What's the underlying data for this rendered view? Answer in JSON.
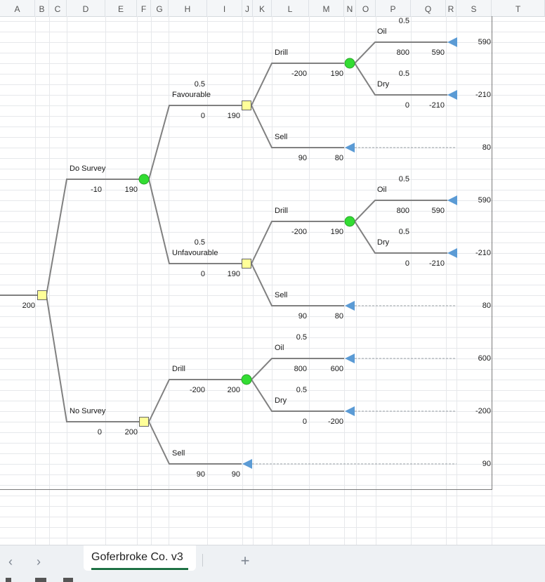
{
  "columns": [
    "A",
    "B",
    "C",
    "D",
    "E",
    "F",
    "G",
    "H",
    "I",
    "J",
    "K",
    "L",
    "M",
    "N",
    "O",
    "P",
    "Q",
    "R",
    "S",
    "T"
  ],
  "tree": {
    "root_value": "200",
    "do_survey": {
      "label": "Do Survey",
      "cost": "-10",
      "value": "190"
    },
    "no_survey": {
      "label": "No Survey",
      "cost": "0",
      "value": "200"
    },
    "favourable": {
      "prob": "0.5",
      "label": "Favourable",
      "cost": "0",
      "value": "190",
      "drill": {
        "label": "Drill",
        "cost": "-200",
        "value": "190",
        "oil": {
          "prob": "0.5",
          "label": "Oil",
          "cost": "800",
          "value": "590",
          "payoff": "590"
        },
        "dry": {
          "prob": "0.5",
          "label": "Dry",
          "cost": "0",
          "value": "-210",
          "payoff": "-210"
        }
      },
      "sell": {
        "label": "Sell",
        "cost": "90",
        "value": "80",
        "payoff": "80"
      }
    },
    "unfavourable": {
      "prob": "0.5",
      "label": "Unfavourable",
      "cost": "0",
      "value": "190",
      "drill": {
        "label": "Drill",
        "cost": "-200",
        "value": "190",
        "oil": {
          "prob": "0.5",
          "label": "Oil",
          "cost": "800",
          "value": "590",
          "payoff": "590"
        },
        "dry": {
          "prob": "0.5",
          "label": "Dry",
          "cost": "0",
          "value": "-210",
          "payoff": "-210"
        }
      },
      "sell": {
        "label": "Sell",
        "cost": "90",
        "value": "80",
        "payoff": "80"
      }
    },
    "nosurvey_drill": {
      "label": "Drill",
      "cost": "-200",
      "value": "200",
      "oil": {
        "prob": "0.5",
        "label": "Oil",
        "cost": "800",
        "value": "600",
        "payoff": "600"
      },
      "dry": {
        "prob": "0.5",
        "label": "Dry",
        "cost": "0",
        "value": "-200",
        "payoff": "-200"
      }
    },
    "nosurvey_sell": {
      "label": "Sell",
      "cost": "90",
      "value": "90",
      "payoff": "90"
    }
  },
  "colors": {
    "decision_fill": "#ffff99",
    "chance_fill": "#33dd33",
    "terminal_fill": "#5b9bd5",
    "line": "#808080"
  },
  "sheet_tabs": {
    "active": "Goferbroke Co. v3"
  },
  "icons": {
    "prev": "chevron-left-icon",
    "next": "chevron-right-icon",
    "add": "plus-icon"
  }
}
